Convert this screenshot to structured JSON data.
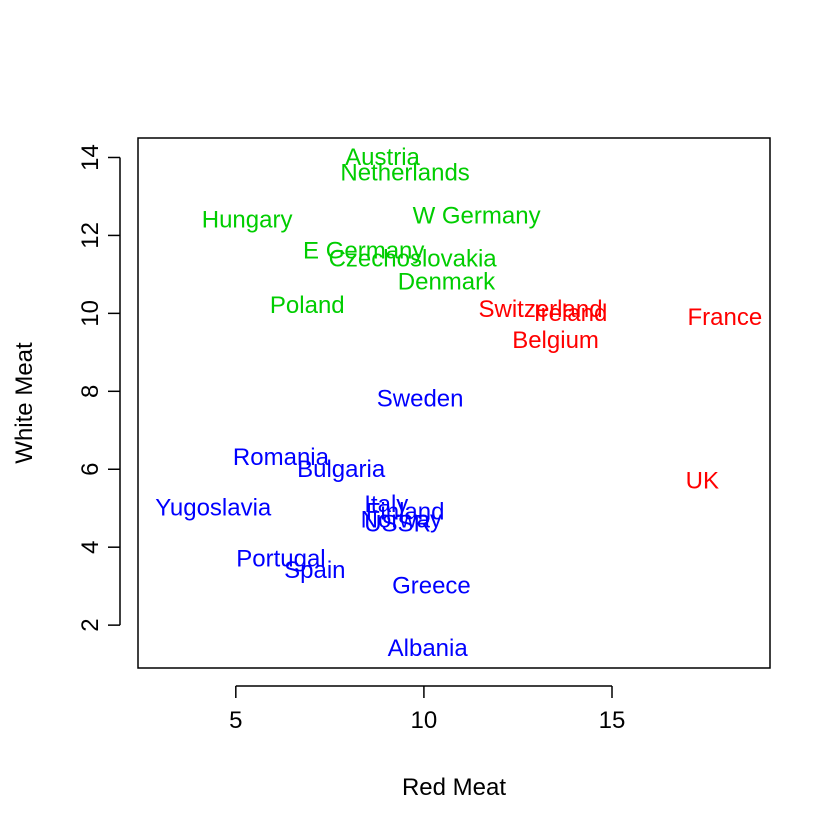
{
  "chart_data": {
    "type": "scatter",
    "title": "",
    "xlabel": "Red Meat",
    "ylabel": "White Meat",
    "xlim": [
      2.4,
      19.2
    ],
    "ylim": [
      0.9,
      14.5
    ],
    "xticks": [
      5,
      10,
      15
    ],
    "yticks": [
      2,
      4,
      6,
      8,
      10,
      12,
      14
    ],
    "grid": false,
    "legend": "none",
    "groups": [
      {
        "group": 1,
        "color": "#0000ff"
      },
      {
        "group": 2,
        "color": "#ff0000"
      },
      {
        "group": 3,
        "color": "#00cd00"
      }
    ],
    "points": [
      {
        "label": "Albania",
        "x": 10.1,
        "y": 1.4,
        "group": 1
      },
      {
        "label": "Austria",
        "x": 8.9,
        "y": 14.0,
        "group": 3
      },
      {
        "label": "Belgium",
        "x": 13.5,
        "y": 9.3,
        "group": 2
      },
      {
        "label": "Bulgaria",
        "x": 7.8,
        "y": 6.0,
        "group": 1
      },
      {
        "label": "Czechoslovakia",
        "x": 9.7,
        "y": 11.4,
        "group": 3
      },
      {
        "label": "Denmark",
        "x": 10.6,
        "y": 10.8,
        "group": 3
      },
      {
        "label": "E Germany",
        "x": 8.4,
        "y": 11.6,
        "group": 3
      },
      {
        "label": "Finland",
        "x": 9.5,
        "y": 4.9,
        "group": 1
      },
      {
        "label": "France",
        "x": 18.0,
        "y": 9.9,
        "group": 2
      },
      {
        "label": "Greece",
        "x": 10.2,
        "y": 3.0,
        "group": 1
      },
      {
        "label": "Hungary",
        "x": 5.3,
        "y": 12.4,
        "group": 3
      },
      {
        "label": "Ireland",
        "x": 13.9,
        "y": 10.0,
        "group": 2
      },
      {
        "label": "Italy",
        "x": 9.0,
        "y": 5.1,
        "group": 1
      },
      {
        "label": "Netherlands",
        "x": 9.5,
        "y": 13.6,
        "group": 3
      },
      {
        "label": "Norway",
        "x": 9.4,
        "y": 4.7,
        "group": 1
      },
      {
        "label": "Poland",
        "x": 6.9,
        "y": 10.2,
        "group": 3
      },
      {
        "label": "Portugal",
        "x": 6.2,
        "y": 3.7,
        "group": 1
      },
      {
        "label": "Romania",
        "x": 6.2,
        "y": 6.3,
        "group": 1
      },
      {
        "label": "Spain",
        "x": 7.1,
        "y": 3.4,
        "group": 1
      },
      {
        "label": "Sweden",
        "x": 9.9,
        "y": 7.8,
        "group": 1
      },
      {
        "label": "Switzerland",
        "x": 13.1,
        "y": 10.1,
        "group": 2
      },
      {
        "label": "UK",
        "x": 17.4,
        "y": 5.7,
        "group": 2
      },
      {
        "label": "USSR",
        "x": 9.3,
        "y": 4.6,
        "group": 1
      },
      {
        "label": "W Germany",
        "x": 11.4,
        "y": 12.5,
        "group": 3
      },
      {
        "label": "Yugoslavia",
        "x": 4.4,
        "y": 5.0,
        "group": 1
      }
    ]
  }
}
